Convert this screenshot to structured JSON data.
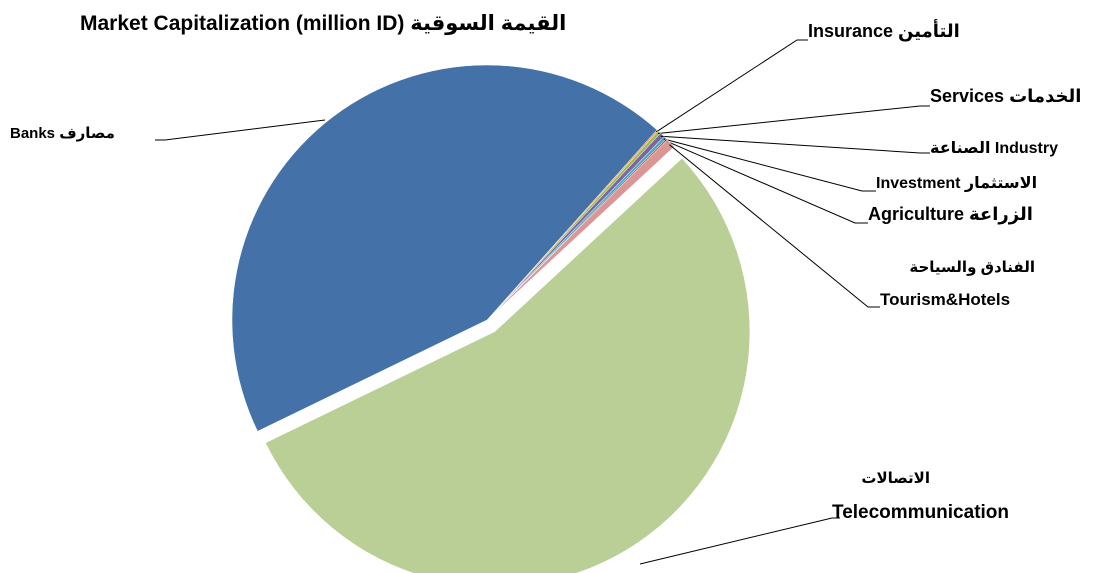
{
  "chart_data": {
    "type": "pie",
    "title": "Market Capitalization (million ID) القيمة السوقية",
    "categories": [
      "Insurance التأمين",
      "Services الخدمات",
      "الصناعة Industry",
      "Investment الاستثمار",
      "Agriculture الزراعة",
      "الفنادق والسياحة\nTourism&Hotels",
      "الاتصالات\nTelecommunication",
      "Banks مصارف"
    ],
    "values": [
      0.1,
      0.2,
      0.3,
      0.2,
      0.1,
      0.6,
      54.7,
      43.8
    ],
    "colors": [
      "#f79646",
      "#9bbb59",
      "#8064a2",
      "#4bacc6",
      "#c0504d",
      "#d99694",
      "#b9cf96",
      "#4472a8"
    ],
    "exploded": [
      6
    ]
  }
}
